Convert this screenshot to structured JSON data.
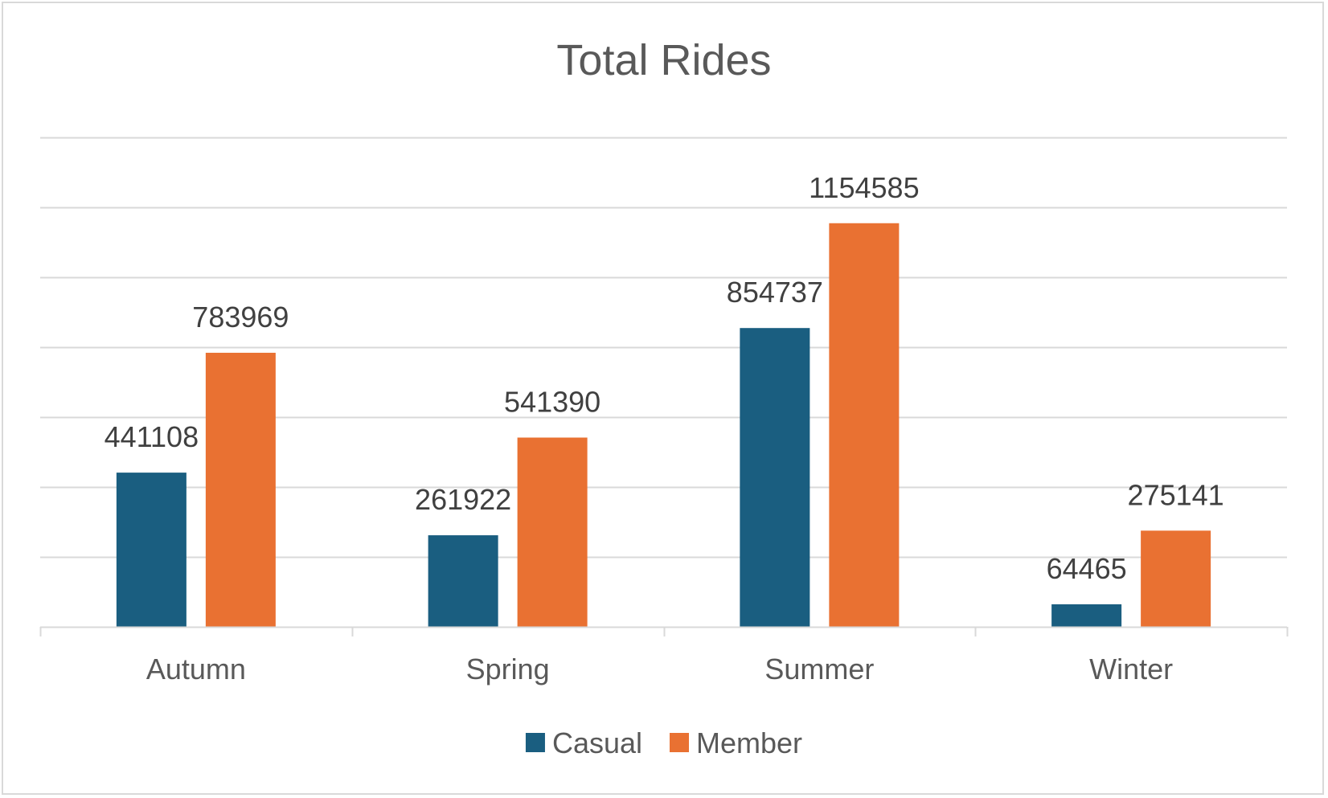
{
  "chart_data": {
    "type": "bar",
    "title": "Total Rides",
    "xlabel": "",
    "ylabel": "",
    "categories": [
      "Autumn",
      "Spring",
      "Summer",
      "Winter"
    ],
    "series": [
      {
        "name": "Casual",
        "color": "#1a5e80",
        "values": [
          441108,
          261922,
          854737,
          64465
        ]
      },
      {
        "name": "Member",
        "color": "#e97132",
        "values": [
          783969,
          541390,
          1154585,
          275141
        ]
      }
    ],
    "ylim": [
      0,
      1400000
    ],
    "y_gridline_step": 200000,
    "y_axis_labels_shown": false,
    "grid": true,
    "data_labels": true,
    "legend": "bottom"
  }
}
